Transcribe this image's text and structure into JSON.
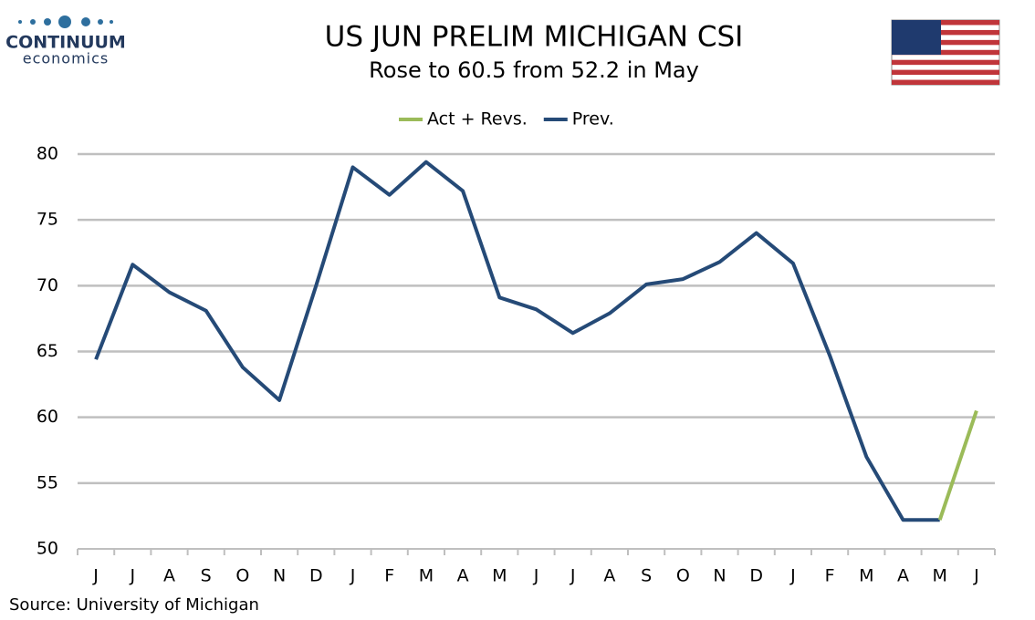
{
  "logo": {
    "name": "CONTINUUM",
    "tagline": "economics"
  },
  "chart_data": {
    "type": "line",
    "title": "US JUN PRELIM MICHIGAN CSI",
    "subtitle": "Rose to 60.5 from 52.2 in May",
    "source": "Source: University of Michigan",
    "categories": [
      "J",
      "J",
      "A",
      "S",
      "O",
      "N",
      "D",
      "J",
      "F",
      "M",
      "A",
      "M",
      "J",
      "J",
      "A",
      "S",
      "O",
      "N",
      "D",
      "J",
      "F",
      "M",
      "A",
      "M",
      "J"
    ],
    "series": [
      {
        "name": "Act + Revs.",
        "color": "#9bbb59",
        "values": [
          null,
          null,
          null,
          null,
          null,
          null,
          null,
          null,
          null,
          null,
          null,
          null,
          null,
          null,
          null,
          null,
          null,
          null,
          null,
          null,
          null,
          null,
          null,
          52.2,
          60.5
        ]
      },
      {
        "name": "Prev.",
        "color": "#254a77",
        "values": [
          64.4,
          71.6,
          69.5,
          68.1,
          63.8,
          61.3,
          70.0,
          79.0,
          76.9,
          79.4,
          77.2,
          69.1,
          68.2,
          66.4,
          67.9,
          70.1,
          70.5,
          71.8,
          74.0,
          71.7,
          64.7,
          57.0,
          52.2,
          52.2,
          null
        ]
      }
    ],
    "ylim": [
      50,
      80
    ],
    "yticks": [
      50,
      55,
      60,
      65,
      70,
      75,
      80
    ],
    "grid": true,
    "legend": "top"
  }
}
